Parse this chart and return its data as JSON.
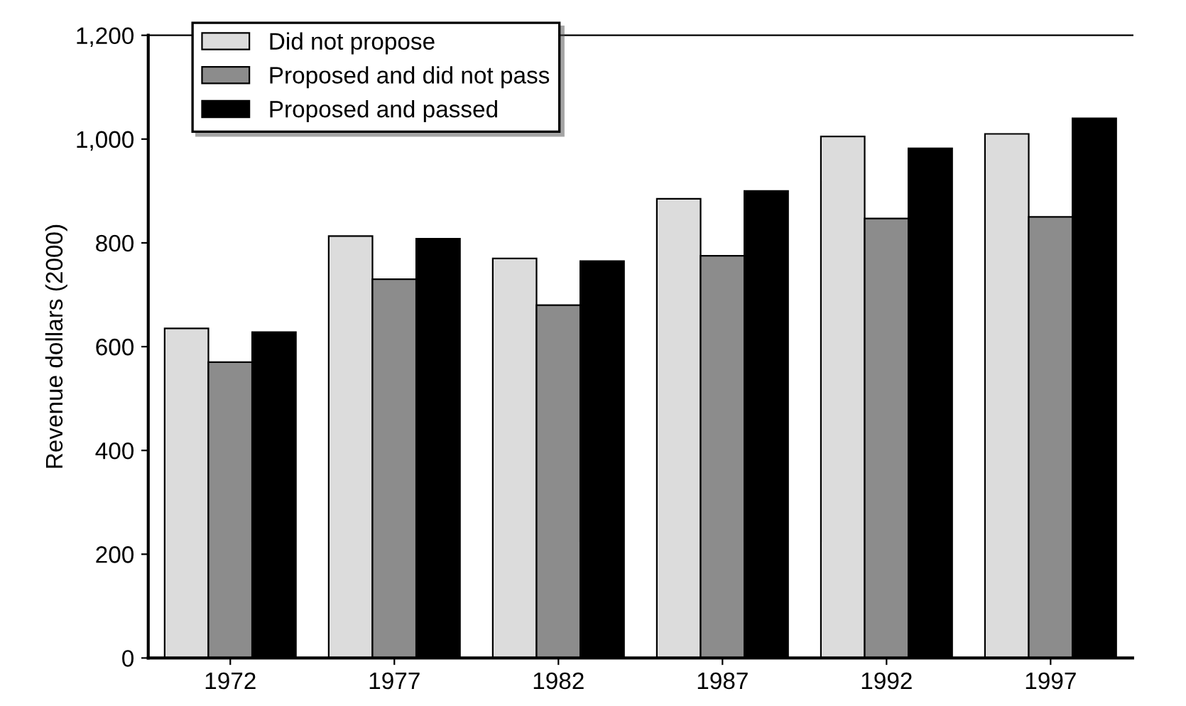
{
  "chart_data": {
    "type": "bar",
    "ylabel": "Revenue dollars (2000)",
    "categories": [
      "1972",
      "1977",
      "1982",
      "1987",
      "1992",
      "1997"
    ],
    "series": [
      {
        "name": "Did not propose",
        "color": "#dcdcdc",
        "values": [
          635,
          813,
          770,
          885,
          1005,
          1010
        ]
      },
      {
        "name": "Proposed and did not pass",
        "color": "#8c8c8c",
        "values": [
          570,
          730,
          680,
          775,
          847,
          850
        ]
      },
      {
        "name": "Proposed and passed",
        "color": "#000000",
        "values": [
          628,
          808,
          765,
          900,
          982,
          1040
        ]
      }
    ],
    "ylim": [
      0,
      1200
    ],
    "yticks": [
      0,
      {
        "value": 200,
        "label": "200"
      },
      {
        "value": 400,
        "label": "400"
      },
      {
        "value": 600,
        "label": "600"
      },
      {
        "value": 800,
        "label": "800"
      },
      {
        "value": 1000,
        "label": "1,000"
      },
      {
        "value": 1200,
        "label": "1,200"
      }
    ],
    "grid": false,
    "legend": "top left"
  }
}
